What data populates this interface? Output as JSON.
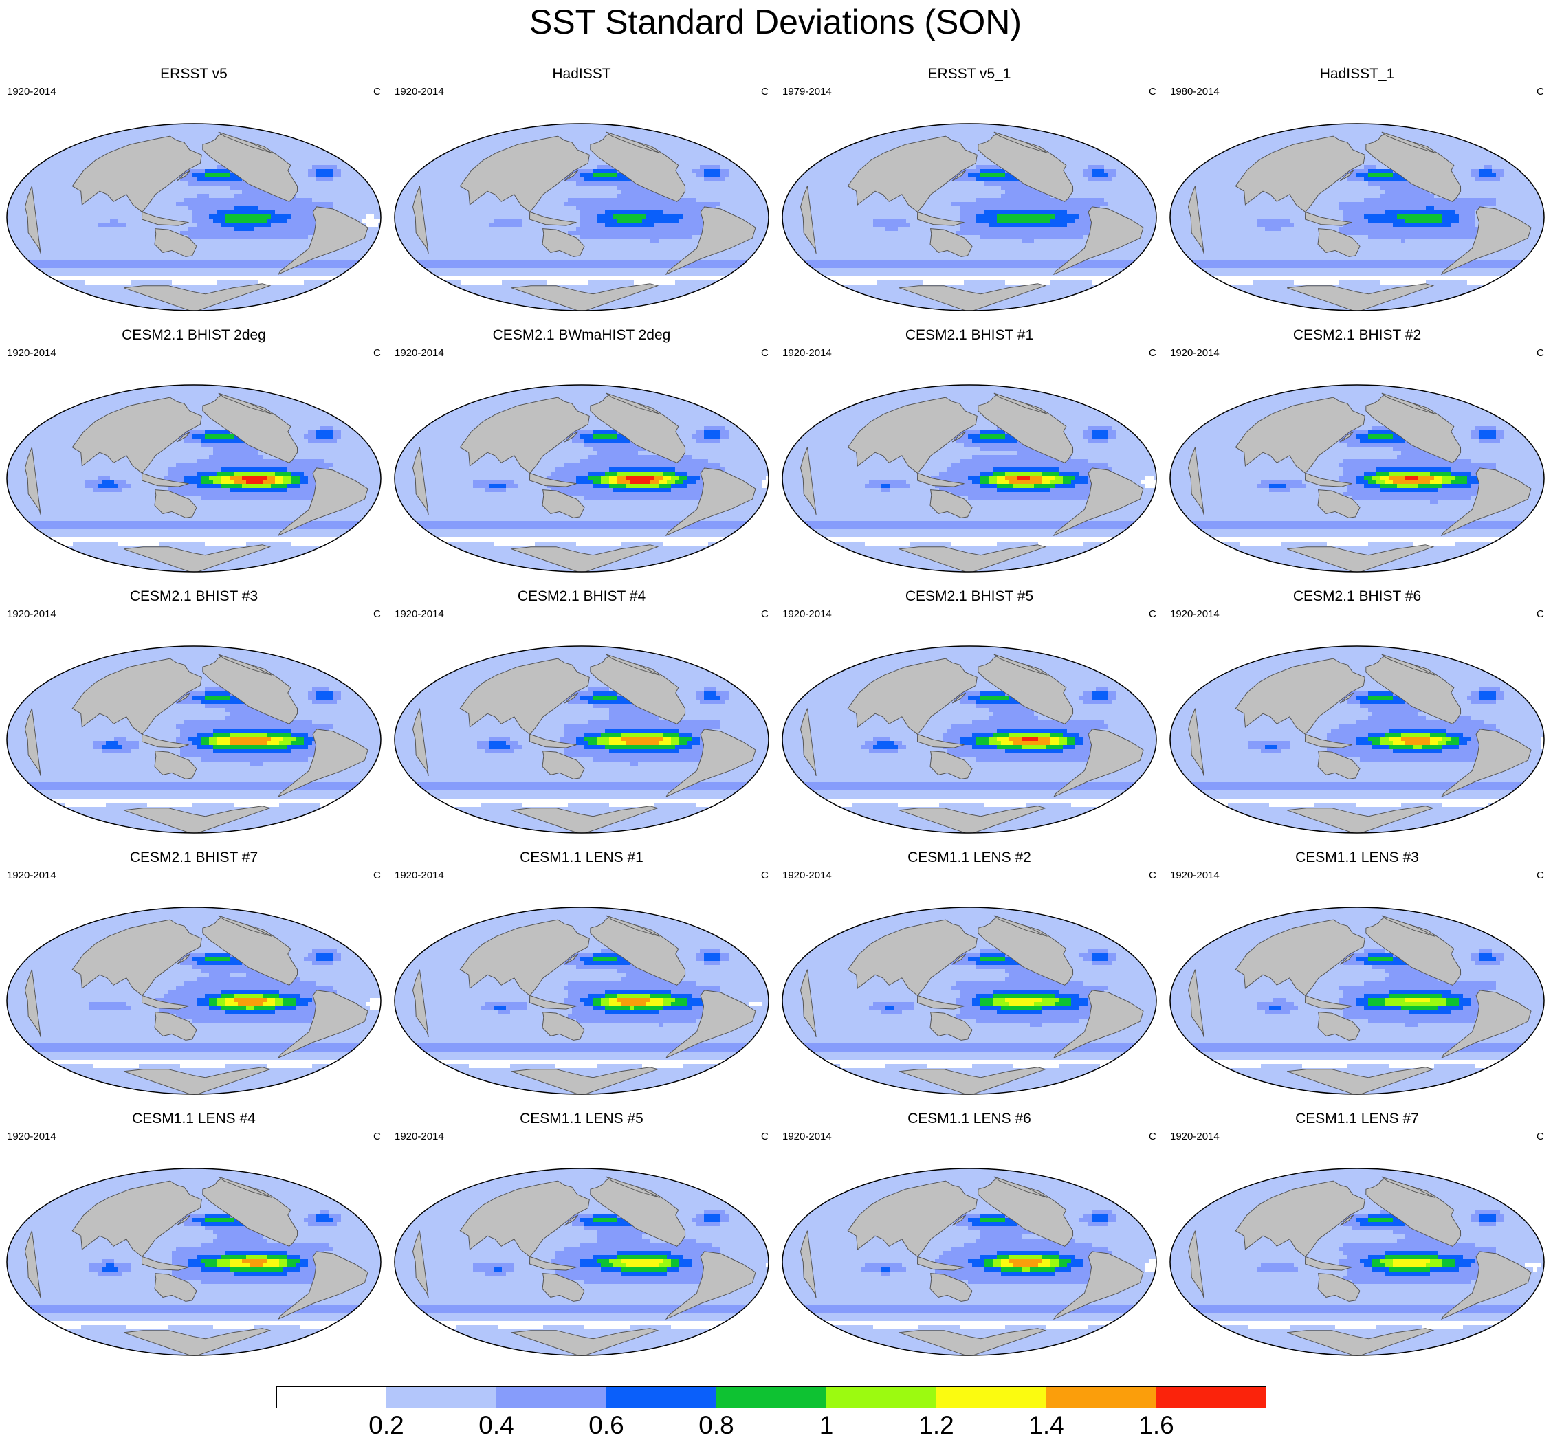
{
  "title": "SST Standard Deviations (SON)",
  "panels": [
    {
      "title": "ERSST v5",
      "period": "1920-2014",
      "unit": "C",
      "amp": 0.85
    },
    {
      "title": "HadISST",
      "period": "1920-2014",
      "unit": "C",
      "amp": 0.8
    },
    {
      "title": "ERSST v5_1",
      "period": "1979-2014",
      "unit": "C",
      "amp": 0.9
    },
    {
      "title": "HadISST_1",
      "period": "1980-2014",
      "unit": "C",
      "amp": 0.85
    },
    {
      "title": "CESM2.1 BHIST 2deg",
      "period": "1920-2014",
      "unit": "C",
      "amp": 1.65
    },
    {
      "title": "CESM2.1 BWmaHIST 2deg",
      "period": "1920-2014",
      "unit": "C",
      "amp": 1.65
    },
    {
      "title": "CESM2.1 BHIST #1",
      "period": "1920-2014",
      "unit": "C",
      "amp": 1.55
    },
    {
      "title": "CESM2.1 BHIST #2",
      "period": "1920-2014",
      "unit": "C",
      "amp": 1.6
    },
    {
      "title": "CESM2.1 BHIST #3",
      "period": "1920-2014",
      "unit": "C",
      "amp": 1.6
    },
    {
      "title": "CESM2.1 BHIST #4",
      "period": "1920-2014",
      "unit": "C",
      "amp": 1.6
    },
    {
      "title": "CESM2.1 BHIST #5",
      "period": "1920-2014",
      "unit": "C",
      "amp": 1.6
    },
    {
      "title": "CESM2.1 BHIST #6",
      "period": "1920-2014",
      "unit": "C",
      "amp": 1.45
    },
    {
      "title": "CESM2.1 BHIST #7",
      "period": "1920-2014",
      "unit": "C",
      "amp": 1.45
    },
    {
      "title": "CESM1.1 LENS #1",
      "period": "1920-2014",
      "unit": "C",
      "amp": 1.5
    },
    {
      "title": "CESM1.1 LENS #2",
      "period": "1920-2014",
      "unit": "C",
      "amp": 1.3
    },
    {
      "title": "CESM1.1 LENS #3",
      "period": "1920-2014",
      "unit": "C",
      "amp": 1.25
    },
    {
      "title": "CESM1.1 LENS #4",
      "period": "1920-2014",
      "unit": "C",
      "amp": 1.45
    },
    {
      "title": "CESM1.1 LENS #5",
      "period": "1920-2014",
      "unit": "C",
      "amp": 1.3
    },
    {
      "title": "CESM1.1 LENS #6",
      "period": "1920-2014",
      "unit": "C",
      "amp": 1.45
    },
    {
      "title": "CESM1.1 LENS #7",
      "period": "1920-2014",
      "unit": "C",
      "amp": 1.3
    }
  ],
  "colorbar": {
    "labels": [
      "0.2",
      "0.4",
      "0.6",
      "0.8",
      "1",
      "1.2",
      "1.4",
      "1.6"
    ],
    "levels": [
      0.2,
      0.4,
      0.6,
      0.8,
      1.0,
      1.2,
      1.4,
      1.6
    ],
    "colors": [
      "#ffffff",
      "#b3c6fb",
      "#869cfb",
      "#0a5ffa",
      "#0ec232",
      "#9cfa10",
      "#fbfb10",
      "#fb9e0b",
      "#fb230b"
    ]
  },
  "land_color": "#c0c0c0"
}
